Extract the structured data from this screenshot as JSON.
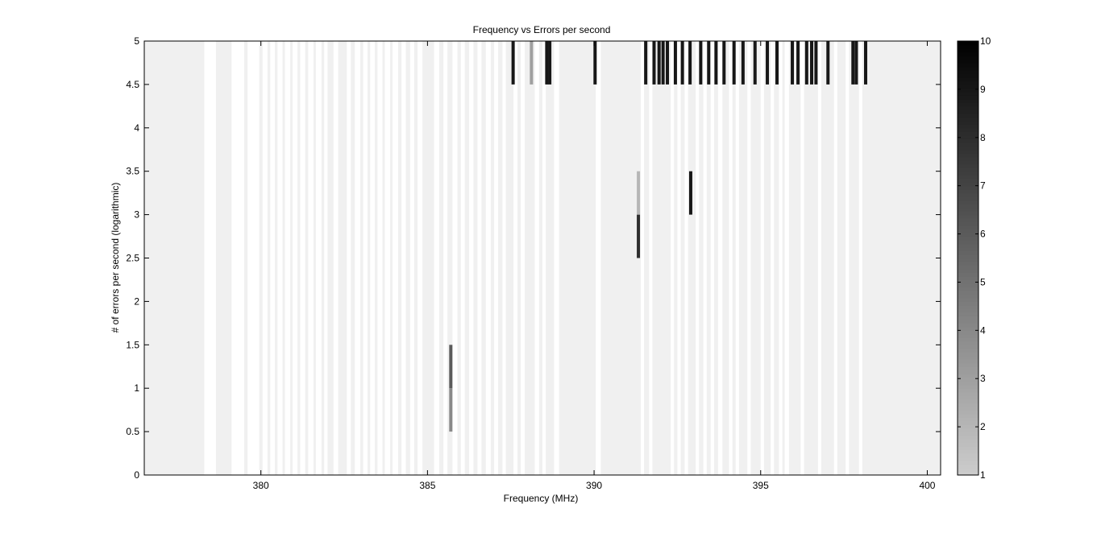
{
  "chart_data": {
    "type": "heatmap",
    "title": "Frequency vs Errors per second",
    "xlabel": "Frequency (MHz)",
    "ylabel": "# of errors per second (logarithmic)",
    "xlim": [
      376.5,
      400.4
    ],
    "ylim": [
      0,
      5
    ],
    "x_ticks": [
      380,
      385,
      390,
      395,
      400
    ],
    "x_tick_labels": [
      "380",
      "385",
      "390",
      "395",
      "400"
    ],
    "y_ticks": [
      0,
      0.5,
      1,
      1.5,
      2,
      2.5,
      3,
      3.5,
      4,
      4.5,
      5
    ],
    "y_tick_labels": [
      "0",
      "0.5",
      "1",
      "1.5",
      "2",
      "2.5",
      "3",
      "3.5",
      "4",
      "4.5",
      "5"
    ],
    "colorbar": {
      "limits": [
        1,
        10
      ],
      "ticks": [
        1,
        2,
        3,
        4,
        5,
        6,
        7,
        8,
        9,
        10
      ],
      "tick_labels": [
        "1",
        "2",
        "3",
        "4",
        "5",
        "6",
        "7",
        "8",
        "9",
        "10"
      ],
      "colormap": "gray (light gray at 1 to black at 10)"
    },
    "background_color": "#f0f0f0",
    "band_color": "#ffffff",
    "channel_bands": [
      [
        378.3,
        378.65
      ],
      [
        379.12,
        379.5
      ],
      [
        379.6,
        379.95
      ],
      [
        380.05,
        380.2
      ],
      [
        380.28,
        380.42
      ],
      [
        380.5,
        380.65
      ],
      [
        380.72,
        380.88
      ],
      [
        380.95,
        381.1
      ],
      [
        381.18,
        381.33
      ],
      [
        381.42,
        381.58
      ],
      [
        381.65,
        381.82
      ],
      [
        381.9,
        382.0
      ],
      [
        382.18,
        382.32
      ],
      [
        382.58,
        382.7
      ],
      [
        382.82,
        382.98
      ],
      [
        383.07,
        383.2
      ],
      [
        383.28,
        383.42
      ],
      [
        383.5,
        383.65
      ],
      [
        383.72,
        383.88
      ],
      [
        383.95,
        384.12
      ],
      [
        384.22,
        384.35
      ],
      [
        384.48,
        384.6
      ],
      [
        384.7,
        384.85
      ],
      [
        385.2,
        385.35
      ],
      [
        385.48,
        385.6
      ],
      [
        385.75,
        385.9
      ],
      [
        386.0,
        386.12
      ],
      [
        386.25,
        386.38
      ],
      [
        386.5,
        386.62
      ],
      [
        386.75,
        386.9
      ],
      [
        387.0,
        387.12
      ],
      [
        387.25,
        387.35
      ],
      [
        387.58,
        387.7
      ],
      [
        387.8,
        387.92
      ],
      [
        388.22,
        388.35
      ],
      [
        388.45,
        388.55
      ],
      [
        388.8,
        388.95
      ],
      [
        390.05,
        390.2
      ],
      [
        391.4,
        391.5
      ],
      [
        391.65,
        391.75
      ],
      [
        392.3,
        392.4
      ],
      [
        392.5,
        392.6
      ],
      [
        392.72,
        392.82
      ],
      [
        393.05,
        393.15
      ],
      [
        393.28,
        393.38
      ],
      [
        393.5,
        393.6
      ],
      [
        393.72,
        393.85
      ],
      [
        394.05,
        394.15
      ],
      [
        394.25,
        394.35
      ],
      [
        394.6,
        394.7
      ],
      [
        395.0,
        395.1
      ],
      [
        395.3,
        395.4
      ],
      [
        395.55,
        395.65
      ],
      [
        395.72,
        395.85
      ],
      [
        396.2,
        396.3
      ],
      [
        396.72,
        396.82
      ],
      [
        397.2,
        397.3
      ],
      [
        397.55,
        397.65
      ],
      [
        397.95,
        398.05
      ]
    ],
    "cells": [
      {
        "x": 387.57,
        "y": [
          4.5,
          5
        ],
        "value": 9
      },
      {
        "x": 388.12,
        "y": [
          4.5,
          5
        ],
        "value": 3
      },
      {
        "x": 388.58,
        "y": [
          4.5,
          5
        ],
        "value": 9
      },
      {
        "x": 388.67,
        "y": [
          4.5,
          5
        ],
        "value": 9
      },
      {
        "x": 390.03,
        "y": [
          4.5,
          5
        ],
        "value": 9
      },
      {
        "x": 391.55,
        "y": [
          4.5,
          5
        ],
        "value": 9
      },
      {
        "x": 391.8,
        "y": [
          4.5,
          5
        ],
        "value": 9
      },
      {
        "x": 391.95,
        "y": [
          4.5,
          5
        ],
        "value": 9
      },
      {
        "x": 392.07,
        "y": [
          4.5,
          5
        ],
        "value": 9
      },
      {
        "x": 392.2,
        "y": [
          4.5,
          5
        ],
        "value": 9
      },
      {
        "x": 392.44,
        "y": [
          4.5,
          5
        ],
        "value": 9
      },
      {
        "x": 392.65,
        "y": [
          4.5,
          5
        ],
        "value": 9
      },
      {
        "x": 392.88,
        "y": [
          4.5,
          5
        ],
        "value": 9
      },
      {
        "x": 393.2,
        "y": [
          4.5,
          5
        ],
        "value": 9
      },
      {
        "x": 393.44,
        "y": [
          4.5,
          5
        ],
        "value": 9
      },
      {
        "x": 393.66,
        "y": [
          4.5,
          5
        ],
        "value": 9
      },
      {
        "x": 393.9,
        "y": [
          4.5,
          5
        ],
        "value": 9
      },
      {
        "x": 394.2,
        "y": [
          4.5,
          5
        ],
        "value": 9
      },
      {
        "x": 394.47,
        "y": [
          4.5,
          5
        ],
        "value": 9
      },
      {
        "x": 394.83,
        "y": [
          4.5,
          5
        ],
        "value": 9
      },
      {
        "x": 395.2,
        "y": [
          4.5,
          5
        ],
        "value": 9
      },
      {
        "x": 395.49,
        "y": [
          4.5,
          5
        ],
        "value": 9
      },
      {
        "x": 395.95,
        "y": [
          4.5,
          5
        ],
        "value": 9
      },
      {
        "x": 396.12,
        "y": [
          4.5,
          5
        ],
        "value": 9
      },
      {
        "x": 396.38,
        "y": [
          4.5,
          5
        ],
        "value": 9
      },
      {
        "x": 396.53,
        "y": [
          4.5,
          5
        ],
        "value": 9
      },
      {
        "x": 396.66,
        "y": [
          4.5,
          5
        ],
        "value": 9
      },
      {
        "x": 397.02,
        "y": [
          4.5,
          5
        ],
        "value": 9
      },
      {
        "x": 397.77,
        "y": [
          4.5,
          5
        ],
        "value": 9
      },
      {
        "x": 397.87,
        "y": [
          4.5,
          5
        ],
        "value": 9
      },
      {
        "x": 398.15,
        "y": [
          4.5,
          5
        ],
        "value": 9
      },
      {
        "x": 385.7,
        "y": [
          0.5,
          1
        ],
        "value": 4
      },
      {
        "x": 385.7,
        "y": [
          1,
          1.5
        ],
        "value": 6
      },
      {
        "x": 391.33,
        "y": [
          2.5,
          3
        ],
        "value": 8
      },
      {
        "x": 391.33,
        "y": [
          3,
          3.5
        ],
        "value": 2
      },
      {
        "x": 392.9,
        "y": [
          3,
          3.5
        ],
        "value": 9
      }
    ]
  }
}
